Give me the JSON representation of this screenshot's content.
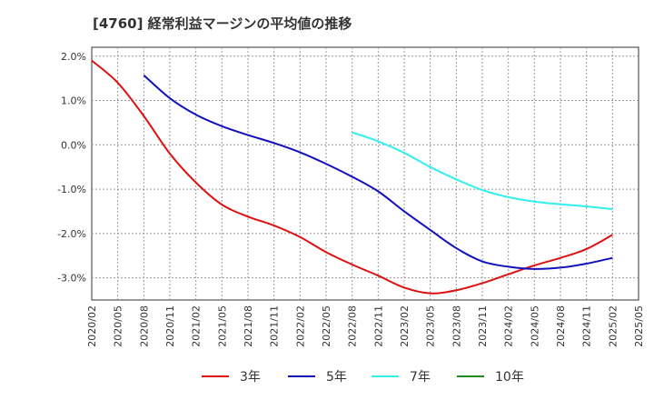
{
  "chart_data": {
    "type": "line",
    "title": "[4760]  経常利益マージンの平均値の推移",
    "xlabel": "",
    "ylabel": "",
    "ylim": [
      -3.5,
      2.2
    ],
    "yticks": [
      2.0,
      1.0,
      0.0,
      -1.0,
      -2.0,
      -3.0
    ],
    "ytick_labels": [
      "2.0%",
      "1.0%",
      "0.0%",
      "-1.0%",
      "-2.0%",
      "-3.0%"
    ],
    "xticks": [
      "2020/02",
      "2020/05",
      "2020/08",
      "2020/11",
      "2021/02",
      "2021/05",
      "2021/08",
      "2021/11",
      "2022/02",
      "2022/05",
      "2022/08",
      "2022/11",
      "2023/02",
      "2023/05",
      "2023/08",
      "2023/11",
      "2024/02",
      "2024/05",
      "2024/08",
      "2024/11",
      "2025/02",
      "2025/05"
    ],
    "grid": true,
    "legend_position": "bottom",
    "series": [
      {
        "name": "3年",
        "color": "#dd1111",
        "x": [
          "2020/02",
          "2020/05",
          "2020/08",
          "2020/11",
          "2021/02",
          "2021/05",
          "2021/08",
          "2021/11",
          "2022/02",
          "2022/05",
          "2022/08",
          "2022/11",
          "2023/02",
          "2023/05",
          "2023/08",
          "2023/11",
          "2024/02",
          "2024/05",
          "2024/08",
          "2024/11",
          "2025/02"
        ],
        "values": [
          1.9,
          1.4,
          0.65,
          -0.2,
          -0.85,
          -1.35,
          -1.62,
          -1.82,
          -2.08,
          -2.42,
          -2.7,
          -2.95,
          -3.22,
          -3.35,
          -3.28,
          -3.12,
          -2.92,
          -2.72,
          -2.55,
          -2.35,
          -2.03
        ]
      },
      {
        "name": "5年",
        "color": "#1111bb",
        "x": [
          "2020/08",
          "2020/11",
          "2021/02",
          "2021/05",
          "2021/08",
          "2021/11",
          "2022/02",
          "2022/05",
          "2022/08",
          "2022/11",
          "2023/02",
          "2023/05",
          "2023/08",
          "2023/11",
          "2024/02",
          "2024/05",
          "2024/08",
          "2024/11",
          "2025/02"
        ],
        "values": [
          1.57,
          1.05,
          0.68,
          0.42,
          0.22,
          0.04,
          -0.17,
          -0.43,
          -0.72,
          -1.05,
          -1.5,
          -1.92,
          -2.33,
          -2.63,
          -2.75,
          -2.8,
          -2.77,
          -2.68,
          -2.55
        ]
      },
      {
        "name": "7年",
        "color": "#33eeee",
        "x": [
          "2022/08",
          "2022/11",
          "2023/02",
          "2023/05",
          "2023/08",
          "2023/11",
          "2024/02",
          "2024/05",
          "2024/08",
          "2024/11",
          "2025/02"
        ],
        "values": [
          0.28,
          0.08,
          -0.18,
          -0.5,
          -0.78,
          -1.02,
          -1.18,
          -1.28,
          -1.34,
          -1.39,
          -1.45
        ]
      },
      {
        "name": "10年",
        "color": "#228822",
        "x": [],
        "values": []
      }
    ]
  }
}
